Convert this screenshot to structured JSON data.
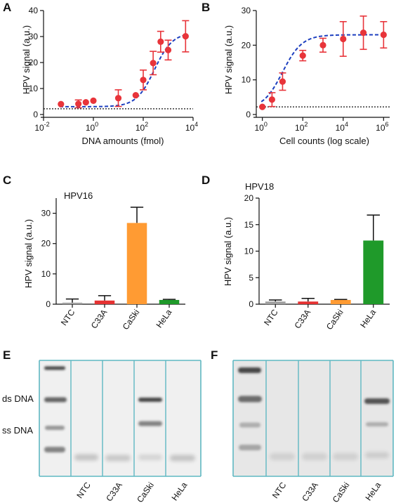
{
  "panels": {
    "A": "A",
    "B": "B",
    "C": "C",
    "D": "D",
    "E": "E",
    "F": "F"
  },
  "chart_data": [
    {
      "id": "A",
      "type": "scatter",
      "xscale": "log",
      "xlim": [
        0.01,
        10000
      ],
      "ylim": [
        0,
        40
      ],
      "xticks": [
        {
          "v": 0.01,
          "base": "10",
          "exp": "-2"
        },
        {
          "v": 1,
          "base": "10",
          "exp": "0"
        },
        {
          "v": 100,
          "base": "10",
          "exp": "2"
        },
        {
          "v": 10000,
          "base": "10",
          "exp": "4"
        }
      ],
      "yticks": [
        0,
        10,
        20,
        30,
        40
      ],
      "xlabel": "DNA amounts (fmol)",
      "ylabel": "HPV signal (a.u.)",
      "points": [
        {
          "x": 0.05,
          "y": 4.0,
          "err": 0
        },
        {
          "x": 0.25,
          "y": 4.1,
          "err": 1.5
        },
        {
          "x": 0.5,
          "y": 4.7,
          "err": 0
        },
        {
          "x": 1,
          "y": 5.3,
          "err": 0
        },
        {
          "x": 10,
          "y": 6.3,
          "err": 3.2
        },
        {
          "x": 50,
          "y": 7.4,
          "err": 0
        },
        {
          "x": 100,
          "y": 13.3,
          "err": 3.8
        },
        {
          "x": 250,
          "y": 19.8,
          "err": 4.5
        },
        {
          "x": 500,
          "y": 28.0,
          "err": 4.0
        },
        {
          "x": 1000,
          "y": 24.8,
          "err": 3.8
        },
        {
          "x": 5000,
          "y": 30.1,
          "err": 6.0
        }
      ],
      "fit": {
        "type": "sigmoid",
        "bottom": 3.0,
        "top": 31.5,
        "log_ec50": 2.45,
        "hill": 1.2
      },
      "baseline": 2.2
    },
    {
      "id": "B",
      "type": "scatter",
      "xscale": "log",
      "xlim": [
        0.5,
        2000000
      ],
      "ylim": [
        0,
        30
      ],
      "xticks": [
        {
          "v": 1,
          "base": "10",
          "exp": "0"
        },
        {
          "v": 100,
          "base": "10",
          "exp": "2"
        },
        {
          "v": 10000,
          "base": "10",
          "exp": "4"
        },
        {
          "v": 1000000,
          "base": "10",
          "exp": "6"
        }
      ],
      "yticks": [
        0,
        10,
        20,
        30
      ],
      "xlabel": "Cell counts (log scale)",
      "ylabel": "HPV signal (a.u.)",
      "points": [
        {
          "x": 1,
          "y": 2.2,
          "err": 0
        },
        {
          "x": 3,
          "y": 4.3,
          "err": 2.0
        },
        {
          "x": 10,
          "y": 9.5,
          "err": 2.5
        },
        {
          "x": 100,
          "y": 17.0,
          "err": 1.5
        },
        {
          "x": 1000,
          "y": 20.0,
          "err": 2.0
        },
        {
          "x": 10000,
          "y": 21.8,
          "err": 5.0
        },
        {
          "x": 100000,
          "y": 23.6,
          "err": 4.8
        },
        {
          "x": 1000000,
          "y": 23.0,
          "err": 3.8
        }
      ],
      "fit": {
        "type": "sigmoid",
        "bottom": 1.5,
        "top": 23.0,
        "log_ec50": 1.0,
        "hill": 0.9
      },
      "baseline": 2.2
    },
    {
      "id": "C",
      "type": "bar",
      "title": "HPV16",
      "categories": [
        "NTC",
        "C33A",
        "CaSki",
        "HeLa"
      ],
      "values": [
        0.5,
        1.2,
        26.8,
        1.4
      ],
      "errors": [
        1.2,
        1.6,
        5.2,
        0.2
      ],
      "colors": [
        "#a0a0a0",
        "#e53232",
        "#ff9b33",
        "#1f9a2a"
      ],
      "ylim": [
        0,
        35
      ],
      "yticks": [
        0,
        10,
        20,
        30
      ],
      "ylabel": "HPV signal (a.u.)"
    },
    {
      "id": "D",
      "type": "bar",
      "title": "HPV18",
      "categories": [
        "NTC",
        "C33A",
        "CaSki",
        "HeLa"
      ],
      "values": [
        0.5,
        0.5,
        0.8,
        12.0
      ],
      "errors": [
        0.3,
        0.6,
        0.1,
        4.8
      ],
      "colors": [
        "#a0a0a0",
        "#e53232",
        "#ff9b33",
        "#1f9a2a"
      ],
      "ylim": [
        0,
        20
      ],
      "yticks": [
        0,
        5,
        10,
        15,
        20
      ],
      "ylabel": "HPV signal (a.u.)"
    }
  ],
  "gels": {
    "E": {
      "lane_labels": [
        "NTC",
        "C33A",
        "CaSki",
        "HeLa"
      ],
      "band_labels": [
        "ds DNA",
        "ss DNA"
      ]
    },
    "F": {
      "lane_labels": [
        "NTC",
        "C33A",
        "CaSki",
        "HeLa"
      ]
    }
  },
  "colors": {
    "point": "#e8343a",
    "fit": "#1d3fbf",
    "gel_border": "#5fb8c2"
  }
}
